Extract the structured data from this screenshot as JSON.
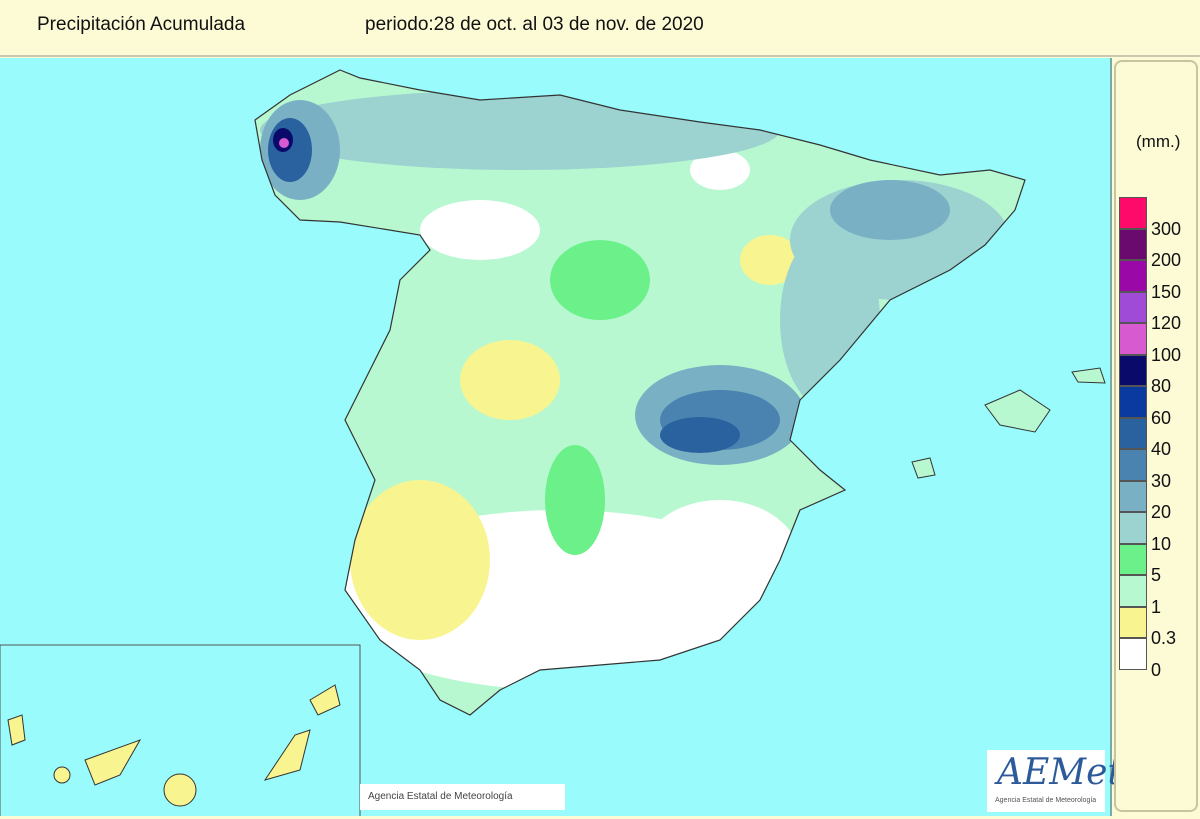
{
  "header": {
    "title": "Precipitación Acumulada",
    "period": "periodo:28 de oct. al 03 de nov. de 2020"
  },
  "legend": {
    "unit": "(mm.)",
    "colors": [
      "#fe0a6a",
      "#6a0a6e",
      "#9a08a8",
      "#a04ad8",
      "#d85ad0",
      "#0a0a6a",
      "#0a3aa0",
      "#2a62a0",
      "#4a82b0",
      "#7ab0c4",
      "#9cd2d0",
      "#6cf08a",
      "#b8f8d0",
      "#f8f490",
      "#ffffff"
    ],
    "labels": [
      "300",
      "200",
      "150",
      "120",
      "100",
      "80",
      "60",
      "40",
      "30",
      "20",
      "10",
      "5",
      "1",
      "0.3",
      "0"
    ]
  },
  "map": {
    "sea_color": "#99fbfb",
    "credit": "Agencia Estatal de Meteorología"
  },
  "logo": {
    "text": "AEMet",
    "subtitle": "Agencia Estatal de Meteorología"
  }
}
